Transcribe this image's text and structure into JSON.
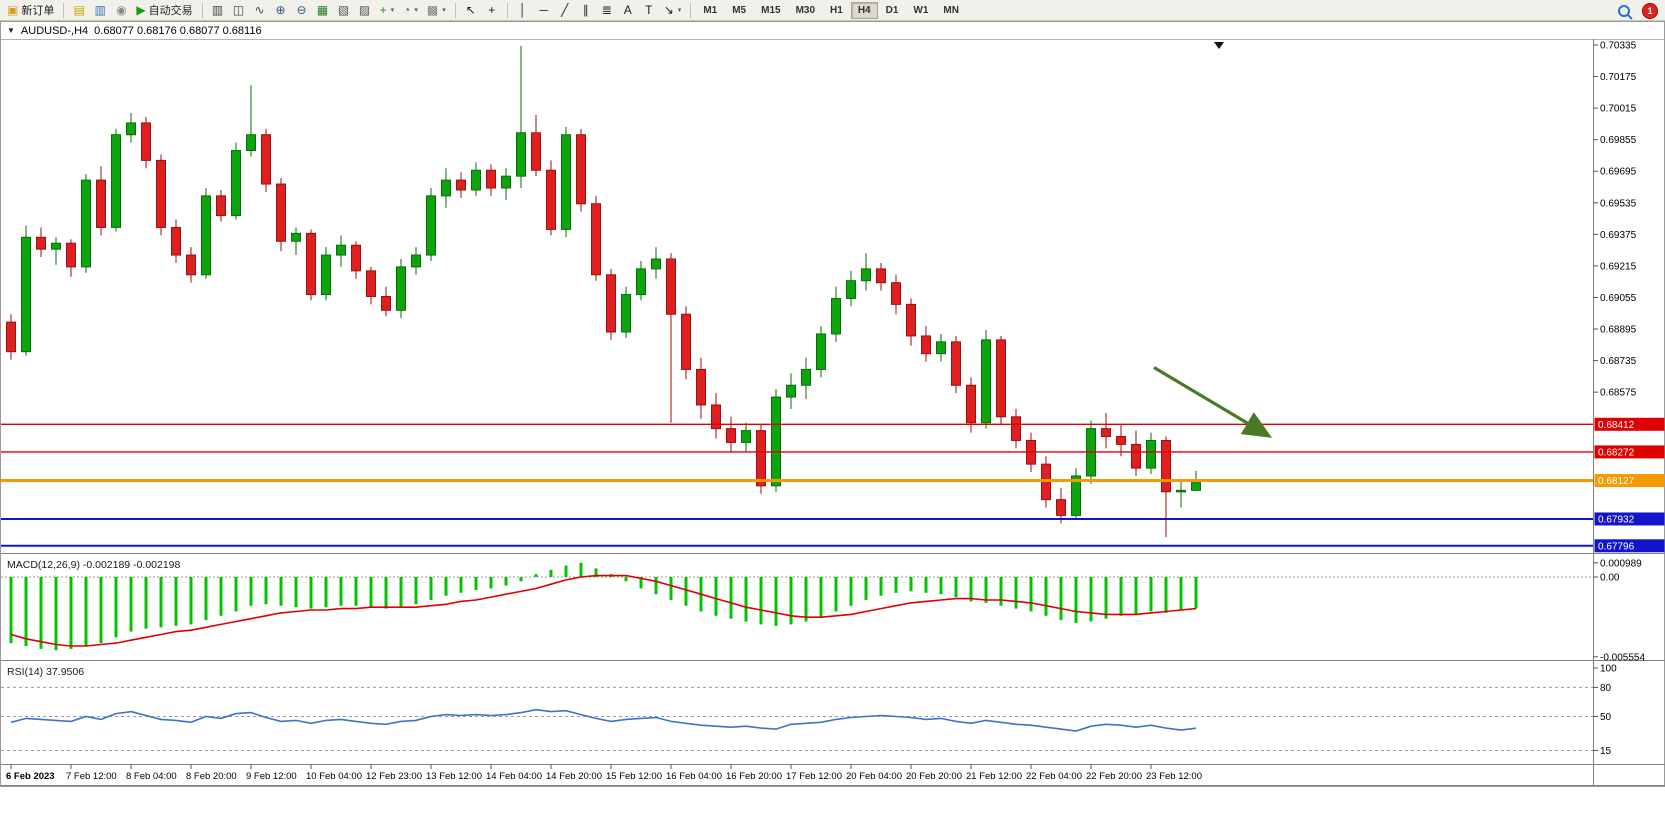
{
  "toolbar": {
    "badge": "1",
    "timeframes": [
      "M1",
      "M5",
      "M15",
      "M30",
      "H1",
      "H4",
      "D1",
      "W1",
      "MN"
    ],
    "active_timeframe": "H4",
    "groups": [
      {
        "items": [
          {
            "name": "new-order-button",
            "icon": "new-order-icon",
            "glyph": "▣",
            "color": "#d4a017",
            "label": "新订单"
          }
        ]
      },
      {
        "items": [
          {
            "name": "profiles-button",
            "icon": "profiles-icon",
            "glyph": "▤",
            "color": "#c8a000"
          },
          {
            "name": "market-watch-button",
            "icon": "market-watch-icon",
            "glyph": "▥",
            "color": "#3b6fb5"
          },
          {
            "name": "navigator-button",
            "icon": "navigator-icon",
            "glyph": "◉",
            "color": "#888888"
          },
          {
            "name": "auto-trading-button",
            "icon": "auto-trading-icon",
            "glyph": "▶",
            "color": "#1a9a1a",
            "label": "自动交易"
          }
        ]
      },
      {
        "items": [
          {
            "name": "bar-chart-button",
            "icon": "bar-chart-icon",
            "glyph": "▥",
            "color": "#444444"
          },
          {
            "name": "candlestick-chart-button",
            "icon": "candlestick-chart-icon",
            "glyph": "◫",
            "color": "#444444"
          },
          {
            "name": "line-chart-button",
            "icon": "line-chart-icon",
            "glyph": "∿",
            "color": "#444444"
          },
          {
            "name": "zoom-in-button",
            "icon": "zoom-in-icon",
            "glyph": "⊕",
            "color": "#33557f"
          },
          {
            "name": "zoom-out-button",
            "icon": "zoom-out-icon",
            "glyph": "⊖",
            "color": "#33557f"
          },
          {
            "name": "tile-windows-button",
            "icon": "tile-windows-icon",
            "glyph": "▦",
            "color": "#2a7d2a"
          },
          {
            "name": "cascade-windows-button",
            "icon": "cascade-windows-icon",
            "glyph": "▧",
            "color": "#555555"
          },
          {
            "name": "arrange-windows-button",
            "icon": "arrange-windows-icon",
            "glyph": "▨",
            "color": "#555555"
          },
          {
            "name": "new-chart-button",
            "icon": "new-chart-icon",
            "glyph": "+",
            "color": "#1a9a1a",
            "caret": true
          },
          {
            "name": "period-button",
            "icon": "clock-icon",
            "glyph": "◔",
            "color": "#3b6fb5",
            "caret": true
          },
          {
            "name": "template-button",
            "icon": "template-icon",
            "glyph": "▩",
            "color": "#777777",
            "caret": true
          }
        ]
      },
      {
        "items": [
          {
            "name": "cursor-button",
            "icon": "cursor-icon",
            "glyph": "↖",
            "color": "#222222"
          },
          {
            "name": "crosshair-button",
            "icon": "crosshair-icon",
            "glyph": "+",
            "color": "#222222"
          }
        ]
      },
      {
        "items": [
          {
            "name": "vertical-line-button",
            "icon": "vertical-line-icon",
            "glyph": "│",
            "color": "#222222"
          },
          {
            "name": "horizontal-line-button",
            "icon": "horizontal-line-icon",
            "glyph": "─",
            "color": "#222222"
          },
          {
            "name": "trendline-button",
            "icon": "trendline-icon",
            "glyph": "╱",
            "color": "#222222"
          },
          {
            "name": "channel-button",
            "icon": "channel-icon",
            "glyph": "∥",
            "color": "#222222"
          },
          {
            "name": "fibonacci-button",
            "icon": "fibonacci-icon",
            "glyph": "≣",
            "color": "#222222"
          },
          {
            "name": "text-button",
            "icon": "text-icon",
            "glyph": "A",
            "color": "#222222"
          },
          {
            "name": "label-button",
            "icon": "label-icon",
            "glyph": "T",
            "color": "#222222"
          },
          {
            "name": "shapes-button",
            "icon": "arrow-shapes-icon",
            "glyph": "↘",
            "color": "#222222",
            "caret": true
          }
        ]
      }
    ]
  },
  "chart": {
    "title_symbol": "AUDUSD-,H4",
    "title_ohlc": "0.68077 0.68176 0.68077 0.68116"
  },
  "chart_data": {
    "type": "candlestick",
    "symbol": "AUDUSD-",
    "timeframe": "H4",
    "current_bar": {
      "open": 0.68077,
      "high": 0.68176,
      "low": 0.68077,
      "close": 0.68116
    },
    "price_axis": [
      0.70335,
      0.70175,
      0.70015,
      0.69855,
      0.69695,
      0.69535,
      0.69375,
      0.69215,
      0.69055,
      0.68895,
      0.68735,
      0.68575
    ],
    "hlines": [
      {
        "price": 0.68412,
        "label": "0.68412",
        "color": "#e00000",
        "width": 1.4
      },
      {
        "price": 0.68272,
        "label": "0.68272",
        "color": "#e00000",
        "width": 1.4
      },
      {
        "price": 0.68127,
        "label": "0.68127",
        "color": "#f59a00",
        "width": 3
      },
      {
        "price": 0.67932,
        "label": "0.67932",
        "color": "#1414cc",
        "width": 2
      },
      {
        "price": 0.67796,
        "label": "0.67796",
        "color": "#1414cc",
        "width": 2
      }
    ],
    "arrow": {
      "from": {
        "index": 76.2,
        "price": 0.687
      },
      "to": {
        "index": 83.7,
        "price": 0.6836
      },
      "color": "#4a7a28"
    },
    "candles": [
      [
        0.6893,
        0.6897,
        0.6874,
        0.6878
      ],
      [
        0.6878,
        0.6942,
        0.6876,
        0.6936
      ],
      [
        0.6936,
        0.6941,
        0.6926,
        0.693
      ],
      [
        0.693,
        0.6936,
        0.6922,
        0.6933
      ],
      [
        0.6933,
        0.6935,
        0.6916,
        0.6921
      ],
      [
        0.6921,
        0.6968,
        0.6918,
        0.6965
      ],
      [
        0.6965,
        0.6972,
        0.6937,
        0.6941
      ],
      [
        0.6941,
        0.6991,
        0.6939,
        0.6988
      ],
      [
        0.6988,
        0.6999,
        0.6984,
        0.6994
      ],
      [
        0.6994,
        0.6997,
        0.6971,
        0.6975
      ],
      [
        0.6975,
        0.6978,
        0.6937,
        0.6941
      ],
      [
        0.6941,
        0.6945,
        0.6923,
        0.6927
      ],
      [
        0.6927,
        0.6931,
        0.6913,
        0.6917
      ],
      [
        0.6917,
        0.6961,
        0.6915,
        0.6957
      ],
      [
        0.6957,
        0.696,
        0.6944,
        0.6947
      ],
      [
        0.6947,
        0.6984,
        0.6945,
        0.698
      ],
      [
        0.698,
        0.7013,
        0.6977,
        0.6988
      ],
      [
        0.6988,
        0.6991,
        0.6959,
        0.6963
      ],
      [
        0.6963,
        0.6966,
        0.6929,
        0.6934
      ],
      [
        0.6934,
        0.6941,
        0.6927,
        0.6938
      ],
      [
        0.6938,
        0.694,
        0.6904,
        0.6907
      ],
      [
        0.6907,
        0.6931,
        0.6904,
        0.6927
      ],
      [
        0.6927,
        0.6937,
        0.6921,
        0.6932
      ],
      [
        0.6932,
        0.6934,
        0.6915,
        0.6919
      ],
      [
        0.6919,
        0.6921,
        0.6902,
        0.6906
      ],
      [
        0.6906,
        0.6911,
        0.6896,
        0.6899
      ],
      [
        0.6899,
        0.6925,
        0.6895,
        0.6921
      ],
      [
        0.6921,
        0.6931,
        0.6917,
        0.6927
      ],
      [
        0.6927,
        0.6961,
        0.6924,
        0.6957
      ],
      [
        0.6957,
        0.6971,
        0.6951,
        0.6965
      ],
      [
        0.6965,
        0.6969,
        0.6956,
        0.696
      ],
      [
        0.696,
        0.6974,
        0.6957,
        0.697
      ],
      [
        0.697,
        0.6973,
        0.6957,
        0.6961
      ],
      [
        0.6961,
        0.6971,
        0.6955,
        0.6967
      ],
      [
        0.6967,
        0.7033,
        0.6961,
        0.6989
      ],
      [
        0.6989,
        0.6998,
        0.6967,
        0.697
      ],
      [
        0.697,
        0.6975,
        0.6937,
        0.694
      ],
      [
        0.694,
        0.6992,
        0.6936,
        0.6988
      ],
      [
        0.6988,
        0.6991,
        0.6949,
        0.6953
      ],
      [
        0.6953,
        0.6957,
        0.6914,
        0.6917
      ],
      [
        0.6917,
        0.692,
        0.6884,
        0.6888
      ],
      [
        0.6888,
        0.6911,
        0.6885,
        0.6907
      ],
      [
        0.6907,
        0.6924,
        0.6904,
        0.692
      ],
      [
        0.692,
        0.6931,
        0.6915,
        0.6925
      ],
      [
        0.6925,
        0.6928,
        0.6842,
        0.6897
      ],
      [
        0.6897,
        0.6901,
        0.6864,
        0.6869
      ],
      [
        0.6869,
        0.6875,
        0.6844,
        0.6851
      ],
      [
        0.6851,
        0.6857,
        0.6834,
        0.6839
      ],
      [
        0.6839,
        0.6845,
        0.6827,
        0.6832
      ],
      [
        0.6832,
        0.6842,
        0.6827,
        0.6838
      ],
      [
        0.6838,
        0.6841,
        0.6806,
        0.681
      ],
      [
        0.681,
        0.6859,
        0.6807,
        0.6855
      ],
      [
        0.6855,
        0.6867,
        0.6849,
        0.6861
      ],
      [
        0.6861,
        0.6875,
        0.6854,
        0.6869
      ],
      [
        0.6869,
        0.6891,
        0.6865,
        0.6887
      ],
      [
        0.6887,
        0.6911,
        0.6883,
        0.6905
      ],
      [
        0.6905,
        0.6919,
        0.6901,
        0.6914
      ],
      [
        0.6914,
        0.6928,
        0.6909,
        0.692
      ],
      [
        0.692,
        0.6923,
        0.6909,
        0.6913
      ],
      [
        0.6913,
        0.6917,
        0.6897,
        0.6902
      ],
      [
        0.6902,
        0.6905,
        0.6881,
        0.6886
      ],
      [
        0.6886,
        0.6891,
        0.6873,
        0.6877
      ],
      [
        0.6877,
        0.6887,
        0.6873,
        0.6883
      ],
      [
        0.6883,
        0.6886,
        0.6857,
        0.6861
      ],
      [
        0.6861,
        0.6865,
        0.6837,
        0.6842
      ],
      [
        0.6842,
        0.6889,
        0.6839,
        0.6884
      ],
      [
        0.6884,
        0.6886,
        0.6841,
        0.6845
      ],
      [
        0.6845,
        0.6849,
        0.6829,
        0.6833
      ],
      [
        0.6833,
        0.6837,
        0.6817,
        0.6821
      ],
      [
        0.6821,
        0.6825,
        0.6799,
        0.6803
      ],
      [
        0.6803,
        0.6809,
        0.6791,
        0.6795
      ],
      [
        0.6795,
        0.6819,
        0.6793,
        0.6815
      ],
      [
        0.6815,
        0.6843,
        0.6811,
        0.6839
      ],
      [
        0.6839,
        0.6847,
        0.6829,
        0.6835
      ],
      [
        0.6835,
        0.6841,
        0.6825,
        0.6831
      ],
      [
        0.6831,
        0.6838,
        0.6815,
        0.6819
      ],
      [
        0.6819,
        0.6837,
        0.6816,
        0.6833
      ],
      [
        0.6833,
        0.6835,
        0.6784,
        0.6807
      ],
      [
        0.6807,
        0.6813,
        0.6799,
        0.68077
      ],
      [
        0.68077,
        0.68176,
        0.68077,
        0.68116
      ]
    ],
    "macd": {
      "label": "MACD(12,26,9)",
      "values_label": "-0.002189 -0.002198",
      "axis": [
        {
          "value": 0.000989,
          "label": "0.000989"
        },
        {
          "value": 0,
          "label": "0.00"
        },
        {
          "value": -0.005554,
          "label": "-0.005554"
        }
      ],
      "histogram": [
        -0.0046,
        -0.0048,
        -0.005,
        -0.0051,
        -0.005,
        -0.0048,
        -0.0046,
        -0.0042,
        -0.0038,
        -0.0036,
        -0.0035,
        -0.0034,
        -0.0033,
        -0.003,
        -0.0027,
        -0.0024,
        -0.002,
        -0.0019,
        -0.002,
        -0.0021,
        -0.0022,
        -0.0021,
        -0.002,
        -0.002,
        -0.0021,
        -0.0022,
        -0.0021,
        -0.0019,
        -0.0016,
        -0.0013,
        -0.0011,
        -0.0009,
        -0.0008,
        -0.0006,
        -0.0003,
        0.0002,
        0.0005,
        0.0008,
        0.00099,
        0.0006,
        0.0002,
        -0.0003,
        -0.0008,
        -0.0012,
        -0.0016,
        -0.002,
        -0.0024,
        -0.0027,
        -0.0029,
        -0.0031,
        -0.0033,
        -0.0034,
        -0.0033,
        -0.0031,
        -0.0028,
        -0.0024,
        -0.002,
        -0.0016,
        -0.0013,
        -0.0011,
        -0.001,
        -0.0011,
        -0.0012,
        -0.0014,
        -0.0017,
        -0.0018,
        -0.002,
        -0.0022,
        -0.0024,
        -0.0027,
        -0.003,
        -0.0032,
        -0.0031,
        -0.0029,
        -0.0027,
        -0.0026,
        -0.0024,
        -0.0025,
        -0.0023,
        -0.002189
      ],
      "signal": [
        -0.004,
        -0.0043,
        -0.0045,
        -0.0047,
        -0.0048,
        -0.0048,
        -0.0047,
        -0.0046,
        -0.0044,
        -0.0042,
        -0.004,
        -0.0038,
        -0.0037,
        -0.0035,
        -0.0033,
        -0.0031,
        -0.0029,
        -0.0027,
        -0.0025,
        -0.0024,
        -0.0023,
        -0.0023,
        -0.0022,
        -0.0022,
        -0.0021,
        -0.0021,
        -0.0021,
        -0.0021,
        -0.002,
        -0.0019,
        -0.0017,
        -0.0016,
        -0.0014,
        -0.0012,
        -0.001,
        -0.0008,
        -0.0005,
        -0.0002,
        0.0,
        0.0001,
        0.0001,
        0.0001,
        -0.0001,
        -0.0003,
        -0.0006,
        -0.0009,
        -0.0012,
        -0.0015,
        -0.0018,
        -0.0021,
        -0.0023,
        -0.0025,
        -0.0027,
        -0.0028,
        -0.0028,
        -0.0027,
        -0.0026,
        -0.0024,
        -0.0022,
        -0.002,
        -0.0018,
        -0.0017,
        -0.0016,
        -0.0015,
        -0.0015,
        -0.0016,
        -0.0016,
        -0.0017,
        -0.0018,
        -0.002,
        -0.0022,
        -0.0024,
        -0.0025,
        -0.0026,
        -0.0026,
        -0.0026,
        -0.0025,
        -0.0024,
        -0.0023,
        -0.002198
      ]
    },
    "rsi": {
      "label": "RSI(14)",
      "value_label": "37.9506",
      "levels": [
        100,
        80,
        50,
        15
      ],
      "level_lines": [
        80,
        50,
        15
      ],
      "values": [
        44,
        48,
        47,
        46,
        45,
        50,
        47,
        53,
        55,
        51,
        47,
        46,
        44,
        50,
        48,
        53,
        54,
        49,
        45,
        46,
        43,
        46,
        47,
        45,
        43,
        42,
        45,
        46,
        50,
        52,
        51,
        52,
        51,
        52,
        54,
        57,
        55,
        56,
        52,
        48,
        45,
        47,
        48,
        49,
        45,
        43,
        41,
        40,
        39,
        40,
        38,
        37,
        42,
        43,
        44,
        47,
        49,
        50,
        51,
        50,
        49,
        47,
        48,
        45,
        43,
        46,
        44,
        42,
        41,
        39,
        37,
        35,
        40,
        42,
        41,
        39,
        41,
        38,
        36,
        37.95
      ]
    },
    "time_labels": [
      {
        "index": 0,
        "text": "6 Feb 2023"
      },
      {
        "index": 4,
        "text": "7 Feb 12:00"
      },
      {
        "index": 8,
        "text": "8 Feb 04:00"
      },
      {
        "index": 12,
        "text": "8 Feb 20:00"
      },
      {
        "index": 16,
        "text": "9 Feb 12:00"
      },
      {
        "index": 20,
        "text": "10 Feb 04:00"
      },
      {
        "index": 24,
        "text": "12 Feb 23:00"
      },
      {
        "index": 28,
        "text": "13 Feb 12:00"
      },
      {
        "index": 32,
        "text": "14 Feb 04:00"
      },
      {
        "index": 36,
        "text": "14 Feb 20:00"
      },
      {
        "index": 40,
        "text": "15 Feb 12:00"
      },
      {
        "index": 44,
        "text": "16 Feb 04:00"
      },
      {
        "index": 48,
        "text": "16 Feb 20:00"
      },
      {
        "index": 52,
        "text": "17 Feb 12:00"
      },
      {
        "index": 56,
        "text": "20 Feb 04:00"
      },
      {
        "index": 60,
        "text": "20 Feb 20:00"
      },
      {
        "index": 64,
        "text": "21 Feb 12:00"
      },
      {
        "index": 68,
        "text": "22 Feb 04:00"
      },
      {
        "index": 72,
        "text": "22 Feb 20:00"
      },
      {
        "index": 76,
        "text": "23 Feb 12:00"
      }
    ],
    "colors": {
      "bull": "#0da50d",
      "bull_border": "#076e07",
      "bear": "#df2020",
      "bear_border": "#9b0f0f",
      "macd_hist": "#00c400",
      "macd_signal": "#e00000",
      "rsi_line": "#3a76c4"
    }
  }
}
